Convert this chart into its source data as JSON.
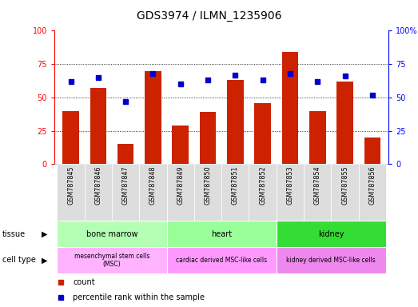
{
  "title": "GDS3974 / ILMN_1235906",
  "samples": [
    "GSM787845",
    "GSM787846",
    "GSM787847",
    "GSM787848",
    "GSM787849",
    "GSM787850",
    "GSM787851",
    "GSM787852",
    "GSM787853",
    "GSM787854",
    "GSM787855",
    "GSM787856"
  ],
  "counts": [
    40,
    57,
    15,
    70,
    29,
    39,
    63,
    46,
    84,
    40,
    62,
    20
  ],
  "percentiles": [
    62,
    65,
    47,
    68,
    60,
    63,
    67,
    63,
    68,
    62,
    66,
    52
  ],
  "tissue_groups": [
    {
      "label": "bone marrow",
      "start": 0,
      "end": 3,
      "color": "#b3ffb3"
    },
    {
      "label": "heart",
      "start": 4,
      "end": 7,
      "color": "#99ff99"
    },
    {
      "label": "kidney",
      "start": 8,
      "end": 11,
      "color": "#33dd33"
    }
  ],
  "cell_type_groups": [
    {
      "label": "mesenchymal stem cells\n(MSC)",
      "start": 0,
      "end": 3,
      "color": "#ffb3ff"
    },
    {
      "label": "cardiac derived MSC-like cells",
      "start": 4,
      "end": 7,
      "color": "#ff99ff"
    },
    {
      "label": "kidney derived MSC-like cells",
      "start": 8,
      "end": 11,
      "color": "#ee88ee"
    }
  ],
  "bar_color": "#cc2200",
  "dot_color": "#0000cc",
  "ylim": [
    0,
    100
  ],
  "grid_ticks": [
    25,
    50,
    75
  ],
  "tissue_label": "tissue",
  "celltype_label": "cell type",
  "legend_count": "count",
  "legend_pct": "percentile rank within the sample",
  "sample_label_color": "#333333",
  "grid_bg": "#e8e8e8"
}
